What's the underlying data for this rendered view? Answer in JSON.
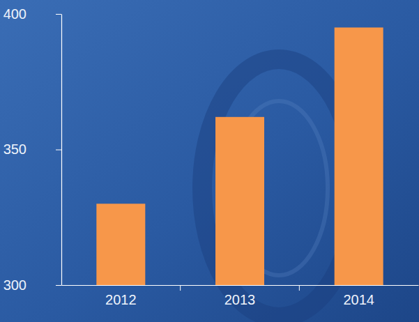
{
  "chart_data": {
    "type": "bar",
    "categories": [
      "2012",
      "2013",
      "2014"
    ],
    "values": [
      330,
      362,
      395
    ],
    "color": "#f7974a",
    "ylim": [
      300,
      400
    ],
    "yticks": [
      300,
      350,
      400
    ]
  }
}
